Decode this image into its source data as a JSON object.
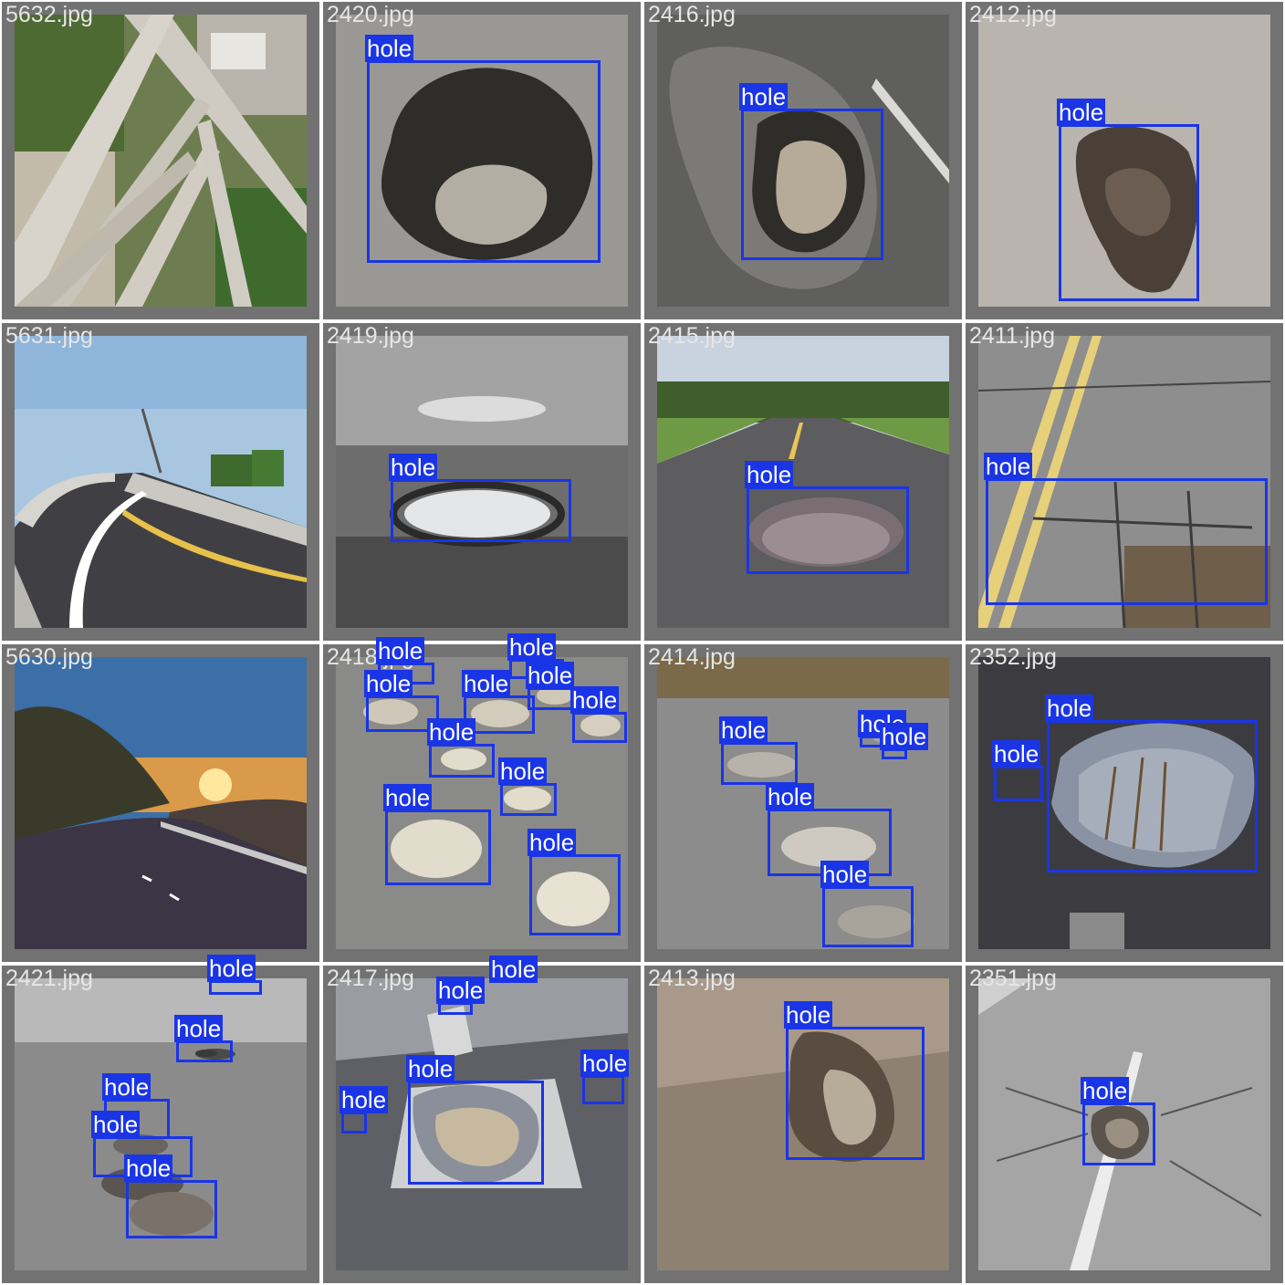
{
  "tiles": [
    {
      "filename": "5632.jpg",
      "scene": "highway interchange aerial"
    },
    {
      "filename": "2420.jpg",
      "scene": "pothole"
    },
    {
      "filename": "2416.jpg",
      "scene": "pothole"
    },
    {
      "filename": "2412.jpg",
      "scene": "pothole"
    },
    {
      "filename": "5631.jpg",
      "scene": "curved overpass road"
    },
    {
      "filename": "2419.jpg",
      "scene": "pothole"
    },
    {
      "filename": "2415.jpg",
      "scene": "rural road"
    },
    {
      "filename": "2411.jpg",
      "scene": "cracked road"
    },
    {
      "filename": "5630.jpg",
      "scene": "mountain road at sunset"
    },
    {
      "filename": "2418.jpg",
      "scene": "many potholes"
    },
    {
      "filename": "2414.jpg",
      "scene": "potholes"
    },
    {
      "filename": "2352.jpg",
      "scene": "pothole with reflection"
    },
    {
      "filename": "2421.jpg",
      "scene": "potholes"
    },
    {
      "filename": "2417.jpg",
      "scene": "potholes"
    },
    {
      "filename": "2413.jpg",
      "scene": "pothole"
    },
    {
      "filename": "2351.jpg",
      "scene": "pothole"
    }
  ],
  "detection_label": "hole",
  "colors": {
    "box": "#1a35e6",
    "tile_border": "#727272",
    "label_text": "#ffffff"
  }
}
